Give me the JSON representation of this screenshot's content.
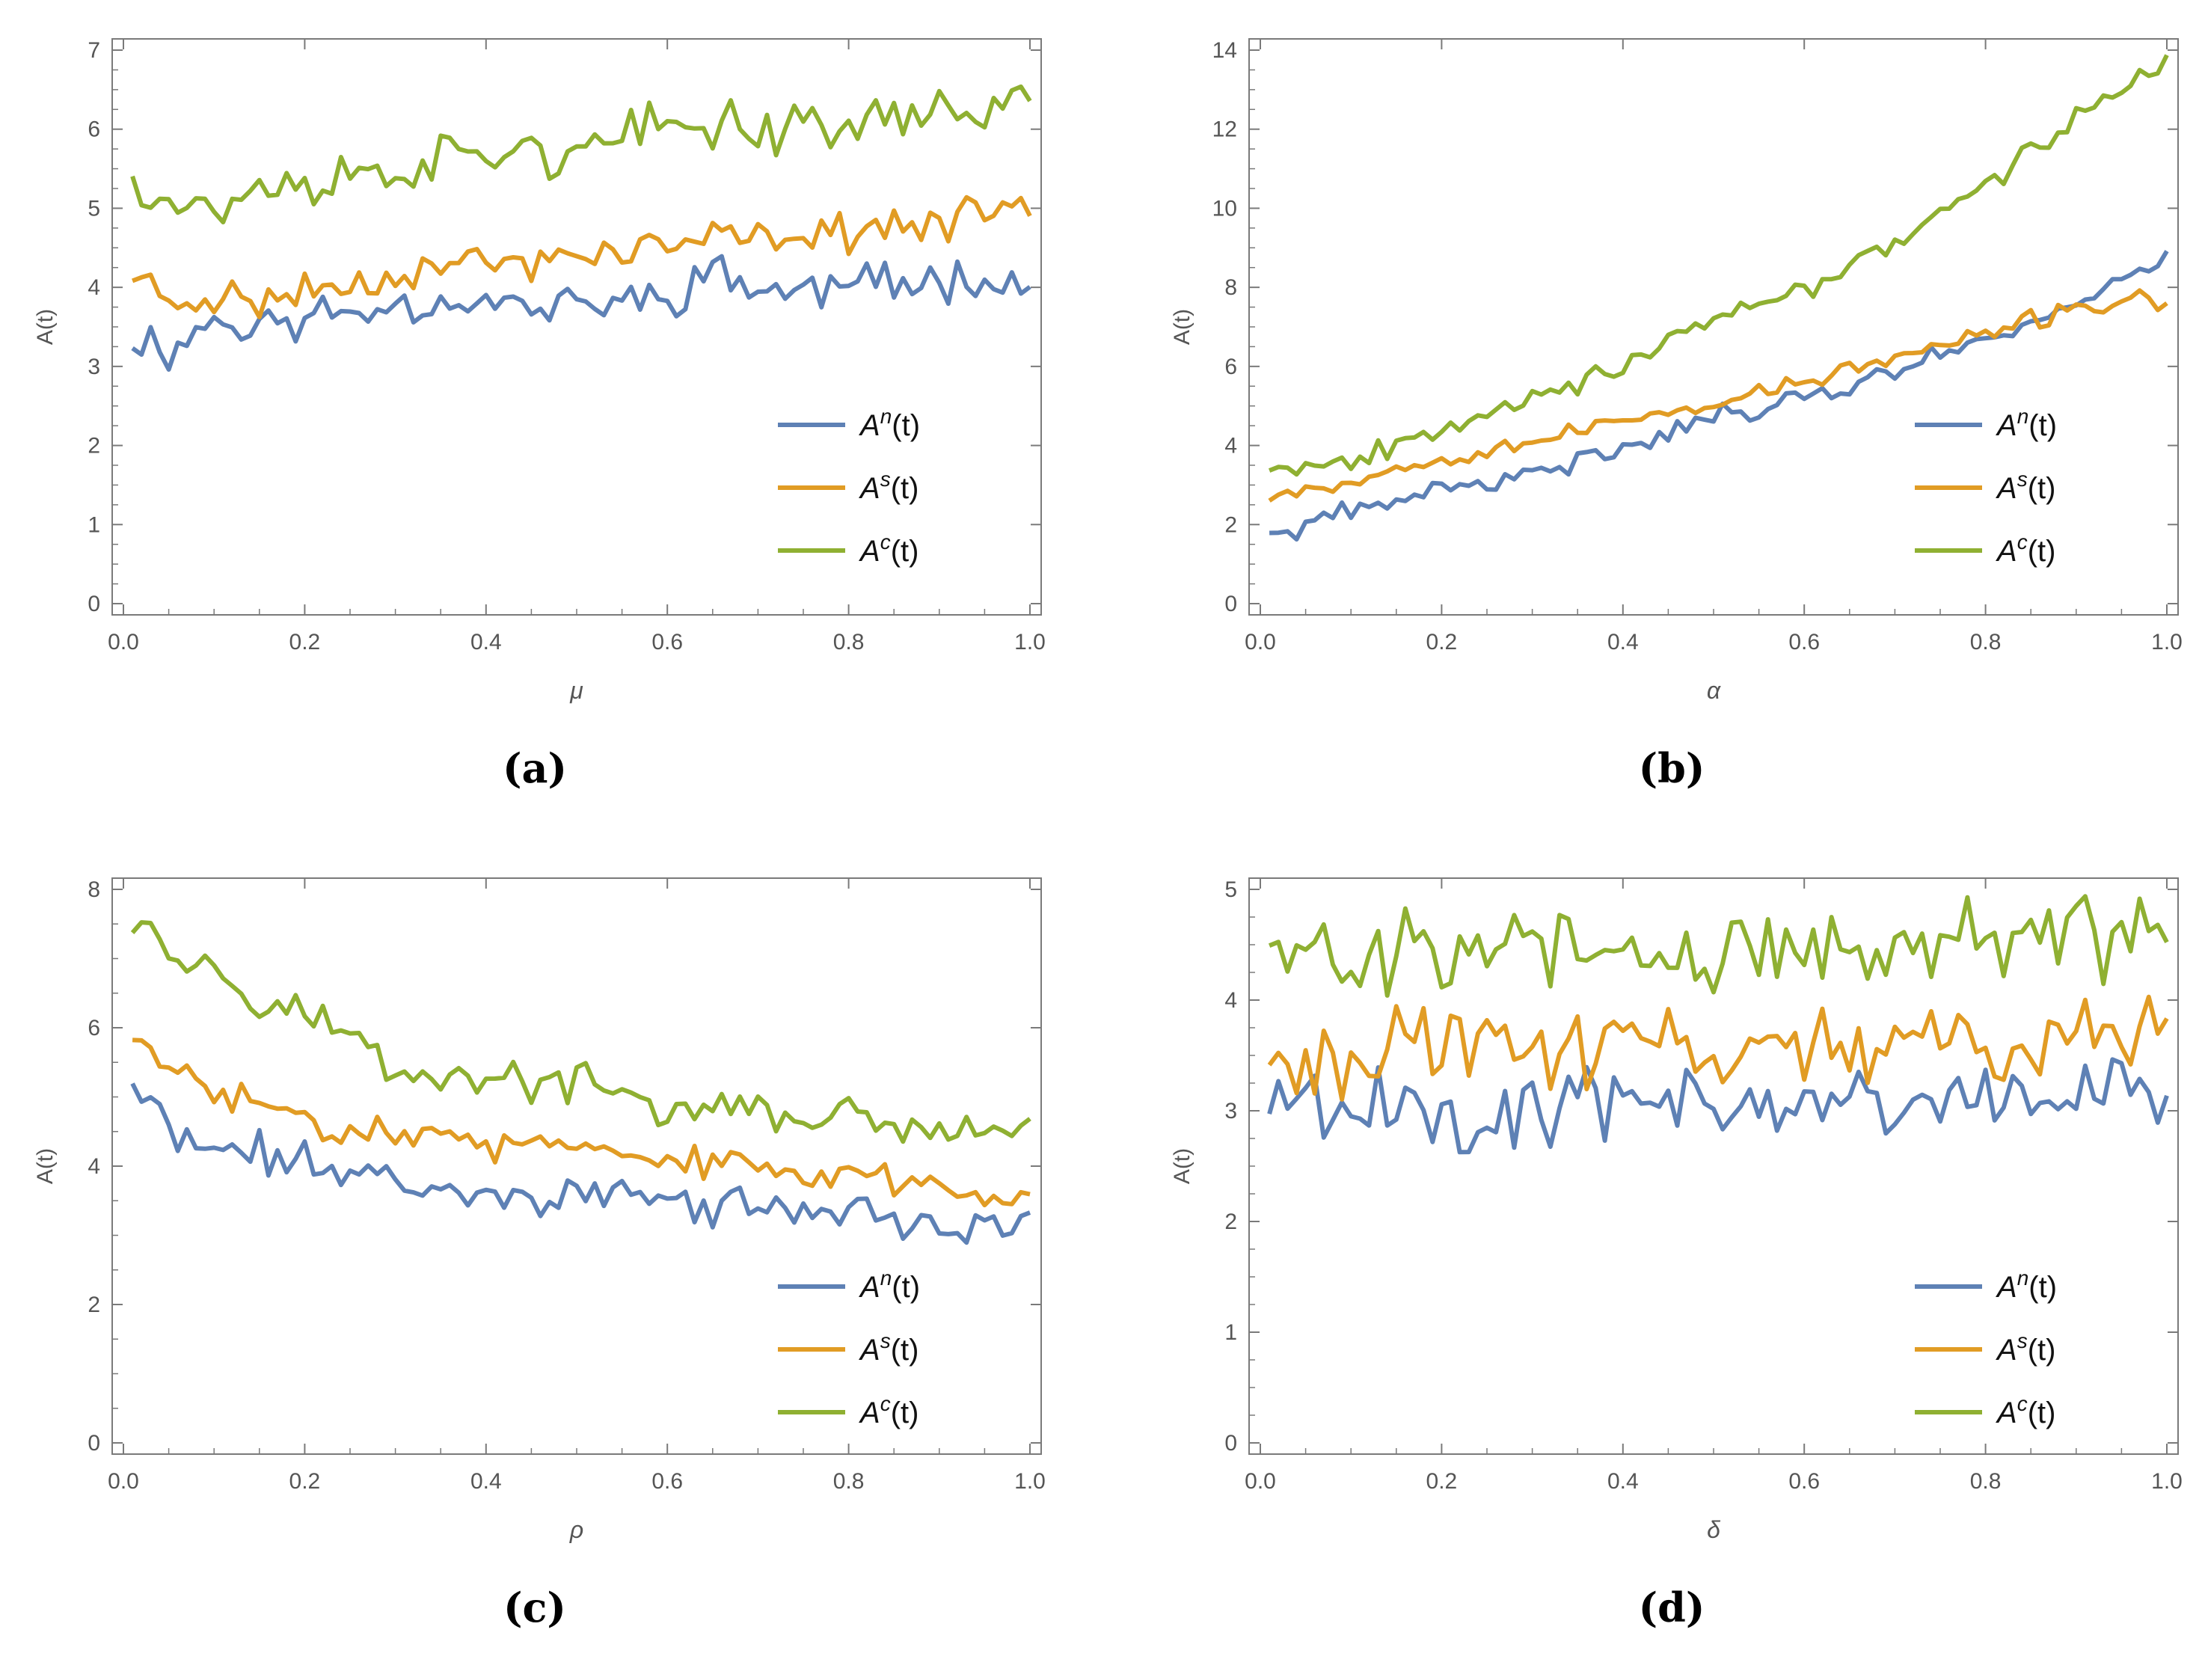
{
  "colors": {
    "An": "#5e81b5",
    "As": "#e19c24",
    "Ac": "#8fb032",
    "axis": "#7a7a7a",
    "tick_text": "#555555"
  },
  "chart_data": [
    {
      "id": "a",
      "type": "line",
      "caption": "(a)",
      "xlabel": "μ",
      "ylabel": "A(t)",
      "xlim": [
        0,
        1
      ],
      "ylim": [
        0,
        7
      ],
      "x_ticks": [
        0.0,
        0.2,
        0.4,
        0.6,
        0.8,
        1.0
      ],
      "x_tick_labels": [
        "0.0",
        "0.2",
        "0.4",
        "0.6",
        "0.8",
        "1.0"
      ],
      "y_ticks": [
        0,
        1,
        2,
        3,
        4,
        5,
        6,
        7
      ],
      "y_tick_labels": [
        "0",
        "1",
        "2",
        "3",
        "4",
        "5",
        "6",
        "7"
      ],
      "legend_position": "right",
      "series": [
        {
          "name": "A^n(t)",
          "base": "A",
          "sup": "n",
          "color_key": "An",
          "x_start": 0.01,
          "x_step": 0.01,
          "points": [
            [
              0.01,
              3.4
            ],
            [
              0.05,
              3.2
            ],
            [
              0.1,
              3.6
            ],
            [
              0.15,
              3.5
            ],
            [
              0.2,
              3.6
            ],
            [
              0.25,
              3.7
            ],
            [
              0.3,
              3.8
            ],
            [
              0.35,
              3.8
            ],
            [
              0.4,
              3.9
            ],
            [
              0.45,
              3.7
            ],
            [
              0.5,
              3.8
            ],
            [
              0.55,
              3.8
            ],
            [
              0.6,
              3.9
            ],
            [
              0.65,
              4.2
            ],
            [
              0.7,
              4.0
            ],
            [
              0.75,
              3.9
            ],
            [
              0.8,
              4.1
            ],
            [
              0.85,
              4.0
            ],
            [
              0.9,
              4.1
            ],
            [
              0.95,
              4.2
            ],
            [
              1.0,
              4.0
            ]
          ],
          "noise": 0.35,
          "seed": 11
        },
        {
          "name": "A^s(t)",
          "base": "A",
          "sup": "s",
          "color_key": "As",
          "x_start": 0.01,
          "x_step": 0.01,
          "points": [
            [
              0.01,
              4.2
            ],
            [
              0.05,
              3.8
            ],
            [
              0.1,
              3.9
            ],
            [
              0.15,
              3.8
            ],
            [
              0.2,
              4.0
            ],
            [
              0.25,
              4.0
            ],
            [
              0.3,
              4.2
            ],
            [
              0.35,
              4.3
            ],
            [
              0.4,
              4.3
            ],
            [
              0.45,
              4.3
            ],
            [
              0.5,
              4.4
            ],
            [
              0.55,
              4.5
            ],
            [
              0.6,
              4.5
            ],
            [
              0.65,
              4.6
            ],
            [
              0.7,
              4.6
            ],
            [
              0.75,
              4.7
            ],
            [
              0.8,
              4.7
            ],
            [
              0.85,
              4.8
            ],
            [
              0.9,
              4.8
            ],
            [
              0.95,
              4.9
            ],
            [
              1.0,
              5.1
            ]
          ],
          "noise": 0.3,
          "seed": 23
        },
        {
          "name": "A^c(t)",
          "base": "A",
          "sup": "c",
          "color_key": "Ac",
          "x_start": 0.01,
          "x_step": 0.01,
          "points": [
            [
              0.01,
              5.45
            ],
            [
              0.05,
              5.1
            ],
            [
              0.1,
              5.0
            ],
            [
              0.15,
              5.2
            ],
            [
              0.2,
              5.3
            ],
            [
              0.25,
              5.4
            ],
            [
              0.3,
              5.5
            ],
            [
              0.35,
              5.6
            ],
            [
              0.4,
              5.7
            ],
            [
              0.45,
              5.8
            ],
            [
              0.5,
              5.6
            ],
            [
              0.55,
              5.9
            ],
            [
              0.6,
              6.0
            ],
            [
              0.65,
              6.1
            ],
            [
              0.7,
              6.0
            ],
            [
              0.75,
              6.1
            ],
            [
              0.8,
              6.0
            ],
            [
              0.85,
              6.2
            ],
            [
              0.9,
              6.2
            ],
            [
              0.95,
              6.3
            ],
            [
              1.0,
              6.4
            ]
          ],
          "noise": 0.4,
          "seed": 37
        }
      ]
    },
    {
      "id": "b",
      "type": "line",
      "caption": "(b)",
      "xlabel": "α",
      "ylabel": "A(t)",
      "xlim": [
        0,
        1
      ],
      "ylim": [
        0,
        14
      ],
      "x_ticks": [
        0.0,
        0.2,
        0.4,
        0.6,
        0.8,
        1.0
      ],
      "x_tick_labels": [
        "0.0",
        "0.2",
        "0.4",
        "0.6",
        "0.8",
        "1.0"
      ],
      "y_ticks": [
        0,
        2,
        4,
        6,
        8,
        10,
        12,
        14
      ],
      "y_tick_labels": [
        "0",
        "2",
        "4",
        "6",
        "8",
        "10",
        "12",
        "14"
      ],
      "legend_position": "right",
      "series": [
        {
          "name": "A^n(t)",
          "base": "A",
          "sup": "n",
          "color_key": "An",
          "x_start": 0.01,
          "x_step": 0.01,
          "points": [
            [
              0.01,
              1.7
            ],
            [
              0.1,
              2.3
            ],
            [
              0.2,
              2.9
            ],
            [
              0.3,
              3.2
            ],
            [
              0.4,
              4.0
            ],
            [
              0.5,
              4.7
            ],
            [
              0.6,
              5.2
            ],
            [
              0.7,
              5.9
            ],
            [
              0.8,
              6.7
            ],
            [
              0.9,
              7.6
            ],
            [
              1.0,
              8.8
            ]
          ],
          "noise": 0.35,
          "seed": 41
        },
        {
          "name": "A^s(t)",
          "base": "A",
          "sup": "s",
          "color_key": "As",
          "x_start": 0.01,
          "x_step": 0.01,
          "points": [
            [
              0.01,
              2.8
            ],
            [
              0.1,
              3.1
            ],
            [
              0.2,
              3.7
            ],
            [
              0.3,
              4.1
            ],
            [
              0.4,
              4.6
            ],
            [
              0.5,
              5.1
            ],
            [
              0.6,
              5.6
            ],
            [
              0.7,
              6.2
            ],
            [
              0.8,
              6.8
            ],
            [
              0.9,
              7.5
            ],
            [
              1.0,
              7.7
            ]
          ],
          "noise": 0.3,
          "seed": 53
        },
        {
          "name": "A^c(t)",
          "base": "A",
          "sup": "c",
          "color_key": "Ac",
          "x_start": 0.01,
          "x_step": 0.01,
          "points": [
            [
              0.01,
              3.5
            ],
            [
              0.1,
              3.6
            ],
            [
              0.2,
              4.5
            ],
            [
              0.3,
              5.3
            ],
            [
              0.4,
              5.9
            ],
            [
              0.5,
              7.2
            ],
            [
              0.6,
              7.9
            ],
            [
              0.7,
              9.2
            ],
            [
              0.8,
              10.5
            ],
            [
              0.9,
              12.3
            ],
            [
              1.0,
              13.8
            ]
          ],
          "noise": 0.35,
          "seed": 67
        }
      ]
    },
    {
      "id": "c",
      "type": "line",
      "caption": "(c)",
      "xlabel": "ρ",
      "ylabel": "A(t)",
      "xlim": [
        0,
        1
      ],
      "ylim": [
        0,
        8
      ],
      "x_ticks": [
        0.0,
        0.2,
        0.4,
        0.6,
        0.8,
        1.0
      ],
      "x_tick_labels": [
        "0.0",
        "0.2",
        "0.4",
        "0.6",
        "0.8",
        "1.0"
      ],
      "y_ticks": [
        0,
        2,
        4,
        6,
        8
      ],
      "y_tick_labels": [
        "0",
        "2",
        "4",
        "6",
        "8"
      ],
      "legend_position": "bottom-right",
      "series": [
        {
          "name": "A^n(t)",
          "base": "A",
          "sup": "n",
          "color_key": "An",
          "x_start": 0.01,
          "x_step": 0.01,
          "points": [
            [
              0.01,
              5.2
            ],
            [
              0.05,
              4.5
            ],
            [
              0.1,
              4.2
            ],
            [
              0.15,
              4.2
            ],
            [
              0.2,
              4.1
            ],
            [
              0.25,
              3.9
            ],
            [
              0.3,
              3.8
            ],
            [
              0.35,
              3.7
            ],
            [
              0.4,
              3.6
            ],
            [
              0.45,
              3.6
            ],
            [
              0.5,
              3.6
            ],
            [
              0.55,
              3.6
            ],
            [
              0.6,
              3.5
            ],
            [
              0.65,
              3.4
            ],
            [
              0.7,
              3.4
            ],
            [
              0.75,
              3.4
            ],
            [
              0.8,
              3.3
            ],
            [
              0.85,
              3.2
            ],
            [
              0.9,
              3.1
            ],
            [
              0.95,
              3.1
            ],
            [
              1.0,
              3.1
            ]
          ],
          "noise": 0.35,
          "seed": 71
        },
        {
          "name": "A^s(t)",
          "base": "A",
          "sup": "s",
          "color_key": "As",
          "x_start": 0.01,
          "x_step": 0.01,
          "points": [
            [
              0.01,
              5.8
            ],
            [
              0.05,
              5.4
            ],
            [
              0.1,
              5.1
            ],
            [
              0.15,
              4.9
            ],
            [
              0.2,
              4.7
            ],
            [
              0.25,
              4.6
            ],
            [
              0.3,
              4.5
            ],
            [
              0.35,
              4.4
            ],
            [
              0.4,
              4.3
            ],
            [
              0.45,
              4.3
            ],
            [
              0.5,
              4.2
            ],
            [
              0.55,
              4.2
            ],
            [
              0.6,
              4.1
            ],
            [
              0.65,
              4.0
            ],
            [
              0.7,
              4.0
            ],
            [
              0.75,
              3.9
            ],
            [
              0.8,
              3.8
            ],
            [
              0.85,
              3.8
            ],
            [
              0.9,
              3.7
            ],
            [
              0.95,
              3.6
            ],
            [
              1.0,
              3.6
            ]
          ],
          "noise": 0.3,
          "seed": 83
        },
        {
          "name": "A^c(t)",
          "base": "A",
          "sup": "c",
          "color_key": "Ac",
          "x_start": 0.01,
          "x_step": 0.01,
          "points": [
            [
              0.01,
              7.6
            ],
            [
              0.03,
              7.8
            ],
            [
              0.05,
              7.0
            ],
            [
              0.1,
              6.9
            ],
            [
              0.15,
              6.5
            ],
            [
              0.2,
              6.2
            ],
            [
              0.25,
              5.9
            ],
            [
              0.3,
              5.4
            ],
            [
              0.35,
              5.3
            ],
            [
              0.4,
              5.3
            ],
            [
              0.45,
              5.2
            ],
            [
              0.5,
              5.2
            ],
            [
              0.55,
              5.0
            ],
            [
              0.6,
              4.8
            ],
            [
              0.65,
              4.8
            ],
            [
              0.7,
              4.8
            ],
            [
              0.75,
              4.7
            ],
            [
              0.8,
              4.7
            ],
            [
              0.85,
              4.6
            ],
            [
              0.9,
              4.4
            ],
            [
              0.95,
              4.5
            ],
            [
              1.0,
              4.5
            ]
          ],
          "noise": 0.35,
          "seed": 97
        }
      ]
    },
    {
      "id": "d",
      "type": "line",
      "caption": "(d)",
      "xlabel": "δ",
      "ylabel": "A(t)",
      "xlim": [
        0,
        1
      ],
      "ylim": [
        0,
        5
      ],
      "x_ticks": [
        0.0,
        0.2,
        0.4,
        0.6,
        0.8,
        1.0
      ],
      "x_tick_labels": [
        "0.0",
        "0.2",
        "0.4",
        "0.6",
        "0.8",
        "1.0"
      ],
      "y_ticks": [
        0,
        1,
        2,
        3,
        4,
        5
      ],
      "y_tick_labels": [
        "0",
        "1",
        "2",
        "3",
        "4",
        "5"
      ],
      "legend_position": "bottom-right",
      "series": [
        {
          "name": "A^n(t)",
          "base": "A",
          "sup": "n",
          "color_key": "An",
          "x_start": 0.01,
          "x_step": 0.01,
          "points": [
            [
              0.01,
              3.1
            ],
            [
              0.25,
              3.0
            ],
            [
              0.5,
              3.05
            ],
            [
              0.75,
              3.1
            ],
            [
              1.0,
              3.15
            ]
          ],
          "noise": 0.45,
          "seed": 101
        },
        {
          "name": "A^s(t)",
          "base": "A",
          "sup": "s",
          "color_key": "As",
          "x_start": 0.01,
          "x_step": 0.01,
          "points": [
            [
              0.01,
              3.5
            ],
            [
              0.25,
              3.6
            ],
            [
              0.5,
              3.6
            ],
            [
              0.75,
              3.6
            ],
            [
              1.0,
              3.7
            ]
          ],
          "noise": 0.45,
          "seed": 113
        },
        {
          "name": "A^c(t)",
          "base": "A",
          "sup": "c",
          "color_key": "Ac",
          "x_start": 0.01,
          "x_step": 0.01,
          "points": [
            [
              0.01,
              4.45
            ],
            [
              0.25,
              4.5
            ],
            [
              0.5,
              4.45
            ],
            [
              0.75,
              4.5
            ],
            [
              1.0,
              4.6
            ]
          ],
          "noise": 0.5,
          "seed": 127
        }
      ]
    }
  ]
}
